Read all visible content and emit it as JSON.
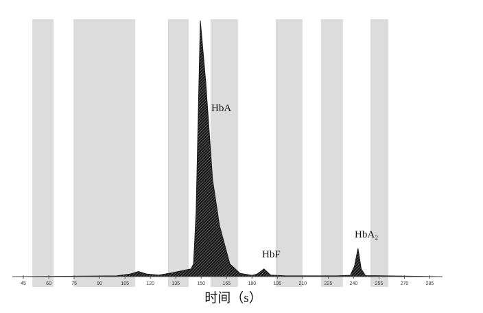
{
  "chart_data": {
    "type": "area",
    "x_label": "时间（s）",
    "xlim": [
      38.5,
      292.5
    ],
    "xticks": [
      45,
      60,
      75,
      90,
      105,
      120,
      135,
      150,
      165,
      180,
      195,
      210,
      225,
      240,
      255,
      270,
      285
    ],
    "ylim": [
      0,
      100
    ],
    "bands": [
      [
        50.3,
        62.8
      ],
      [
        74.6,
        111.0
      ],
      [
        130.4,
        142.6
      ],
      [
        155.5,
        171.7
      ],
      [
        194.0,
        209.8
      ],
      [
        220.7,
        233.7
      ],
      [
        249.9,
        260.4
      ]
    ],
    "band_color": "#dcdcdc",
    "x": [
      38.5,
      100,
      108,
      113,
      118,
      125,
      133,
      140,
      144,
      145.5,
      147,
      148.5,
      149.5,
      152.7,
      156.7,
      160.8,
      166.9,
      172.9,
      180,
      183,
      187.1,
      191,
      200,
      230,
      238,
      240.5,
      242.6,
      244.5,
      247,
      292.5
    ],
    "series": [
      {
        "color": "#1a1a1a",
        "values": [
          0,
          0.3,
          1,
          2,
          1,
          0.6,
          1.5,
          2.5,
          3,
          5,
          25,
          70,
          100,
          76,
          38,
          20,
          5,
          1.3,
          0.5,
          1,
          3,
          0.6,
          0.3,
          0.3,
          0.5,
          4,
          11,
          3,
          0.4,
          0
        ]
      }
    ],
    "peak_labels": [
      "HbA",
      "HbF",
      "HbA₂"
    ]
  }
}
